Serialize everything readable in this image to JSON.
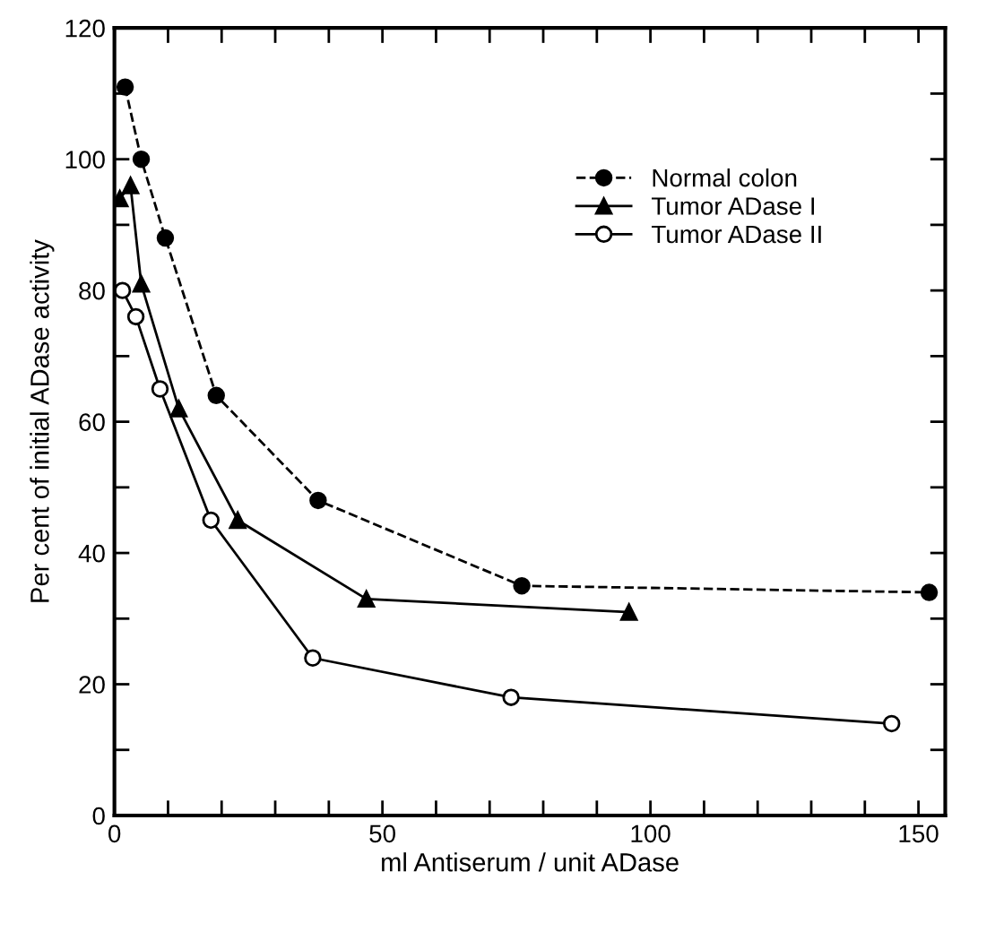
{
  "chart_data": {
    "type": "line",
    "xlabel": "ml Antiserum / unit ADase",
    "ylabel": "Per cent of initial ADase activity",
    "xlim": [
      0,
      155
    ],
    "ylim": [
      0,
      120
    ],
    "xticks": [
      0,
      {
        "value": 10,
        "label": null
      },
      {
        "value": 20,
        "label": null
      },
      {
        "value": 30,
        "label": null
      },
      {
        "value": 40,
        "label": null
      },
      50,
      {
        "value": 60,
        "label": null
      },
      {
        "value": 70,
        "label": null
      },
      {
        "value": 80,
        "label": null
      },
      {
        "value": 90,
        "label": null
      },
      100,
      {
        "value": 110,
        "label": null
      },
      {
        "value": 120,
        "label": null
      },
      {
        "value": 130,
        "label": null
      },
      {
        "value": 140,
        "label": null
      },
      150
    ],
    "yticks": [
      0,
      {
        "value": 10,
        "label": null
      },
      20,
      {
        "value": 30,
        "label": null
      },
      40,
      {
        "value": 50,
        "label": null
      },
      60,
      {
        "value": 70,
        "label": null
      },
      80,
      {
        "value": 90,
        "label": null
      },
      100,
      {
        "value": 110,
        "label": null
      },
      120
    ],
    "grid": false,
    "legend": "top right",
    "series": [
      {
        "name": "Normal colon",
        "color": "#000000",
        "marker": "circle",
        "line_style": "dashed",
        "x": [
          2,
          5,
          9.5,
          19,
          38,
          76,
          152
        ],
        "values": [
          111,
          100,
          88,
          64,
          48,
          35,
          34
        ]
      },
      {
        "name": "Tumor ADase I",
        "color": "#000000",
        "marker": "triangle",
        "line_style": "solid",
        "x": [
          1,
          3,
          5,
          12,
          23,
          47,
          96
        ],
        "values": [
          94,
          96,
          81,
          62,
          45,
          33,
          31
        ]
      },
      {
        "name": "Tumor ADase II",
        "color": "#000000",
        "marker": "circle",
        "line_style": "solid",
        "x": [
          1.5,
          4,
          8.5,
          18,
          37,
          74,
          145
        ],
        "values": [
          80,
          76,
          65,
          45,
          24,
          18,
          14
        ]
      }
    ]
  }
}
